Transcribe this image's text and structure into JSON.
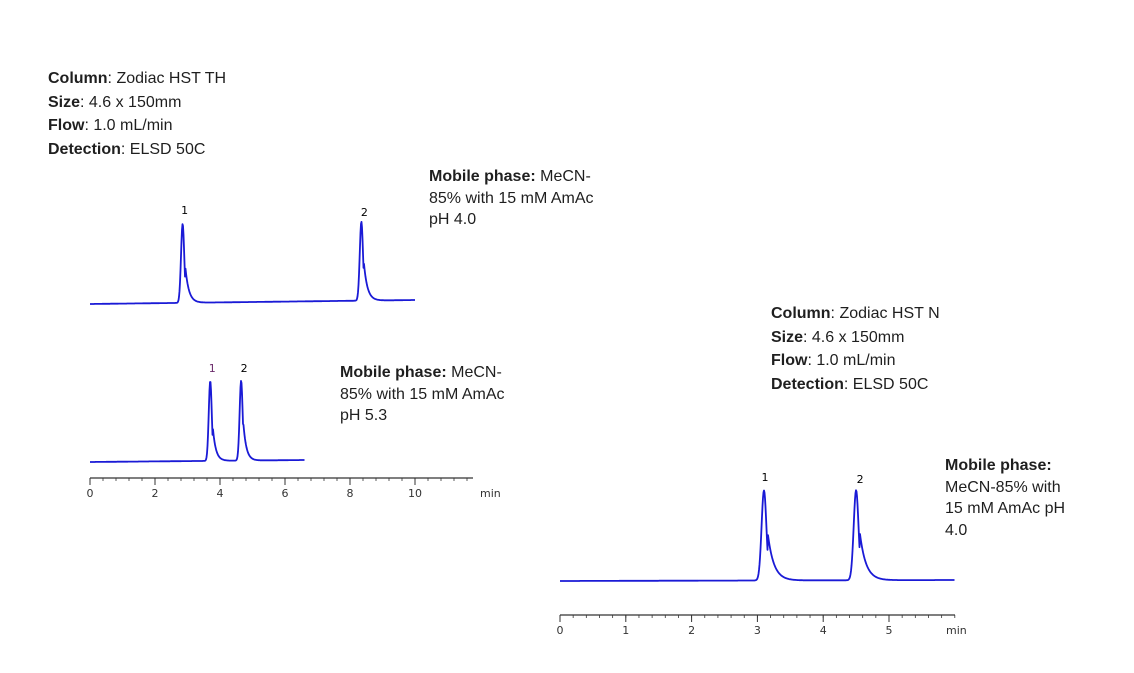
{
  "colors": {
    "trace": "#1a1ad6",
    "axis": "#333333",
    "peak_label_left": "#000000",
    "peak_label_left_lower": "#6a2a6a"
  },
  "info_left": [
    {
      "label": "Column",
      "sep": ":  ",
      "value": "Zodiac HST TH"
    },
    {
      "label": "Size",
      "sep": ": ",
      "value": "4.6 x 150mm"
    },
    {
      "label": "Flow",
      "sep": ": ",
      "value": "1.0 mL/min"
    },
    {
      "label": "Detection",
      "sep": ":  ",
      "value": "ELSD 50C"
    }
  ],
  "info_right": [
    {
      "label": "Column",
      "sep": ":  ",
      "value": "Zodiac HST N"
    },
    {
      "label": "Size",
      "sep": ": ",
      "value": "4.6 x 150mm"
    },
    {
      "label": "Flow",
      "sep": ": ",
      "value": "1.0 mL/min"
    },
    {
      "label": "Detection",
      "sep": ":  ",
      "value": "ELSD 50C"
    }
  ],
  "mobile_phase": {
    "top_left": {
      "label": "Mobile phase:",
      "lines": [
        " MeCN-",
        "85% with 15 mM AmAc",
        "pH 4.0"
      ]
    },
    "bottom_left": {
      "label": "Mobile phase:",
      "lines": [
        " MeCN-",
        "85% with 15 mM AmAc",
        "pH 5.3"
      ]
    },
    "right": {
      "label": "Mobile phase:",
      "lines": [
        "",
        "MeCN-85% with",
        "15 mM AmAc pH",
        "4.0"
      ]
    }
  },
  "chart_data": [
    {
      "type": "line",
      "title": "",
      "xlabel": "min",
      "ylabel": "",
      "xlim": [
        0,
        11.8
      ],
      "x_ticks": [
        "0",
        "2",
        "4",
        "6",
        "8",
        "10"
      ],
      "series": [
        {
          "condition": "pH 4.0",
          "x_range": [
            0,
            10
          ],
          "peaks": [
            {
              "label": "1",
              "rt": 2.85,
              "height": 1.0
            },
            {
              "label": "2",
              "rt": 8.35,
              "height": 1.0
            }
          ]
        },
        {
          "condition": "pH 5.3",
          "x_range": [
            0,
            6.6
          ],
          "peaks": [
            {
              "label": "1",
              "rt": 3.7,
              "height": 1.0
            },
            {
              "label": "2",
              "rt": 4.65,
              "height": 1.0
            }
          ]
        }
      ]
    },
    {
      "type": "line",
      "title": "",
      "xlabel": "min",
      "ylabel": "",
      "xlim": [
        0,
        6
      ],
      "x_ticks": [
        "0",
        "1",
        "2",
        "3",
        "4",
        "5"
      ],
      "series": [
        {
          "condition": "pH 4.0",
          "x_range": [
            0,
            6
          ],
          "peaks": [
            {
              "label": "1",
              "rt": 3.1,
              "height": 1.0
            },
            {
              "label": "2",
              "rt": 4.5,
              "height": 1.0
            }
          ]
        }
      ]
    }
  ]
}
